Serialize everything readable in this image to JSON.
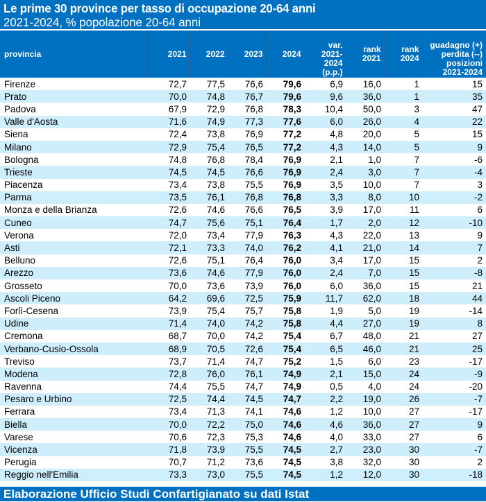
{
  "title": "Le prime 30 province per tasso di occupazione 20-64 anni",
  "subtitle": "2021-2024, % popolazione 20-64 anni",
  "columns": [
    {
      "key": "provincia",
      "label": "provincia"
    },
    {
      "key": "y2021",
      "label": "2021"
    },
    {
      "key": "y2022",
      "label": "2022"
    },
    {
      "key": "y2023",
      "label": "2023"
    },
    {
      "key": "y2024",
      "label": "2024"
    },
    {
      "key": "var",
      "label_lines": [
        "var.",
        "2021-",
        "2024",
        "(p.p.)"
      ]
    },
    {
      "key": "rank2021",
      "label_lines": [
        "rank",
        "2021"
      ]
    },
    {
      "key": "rank2024",
      "label_lines": [
        "rank",
        "2024"
      ]
    },
    {
      "key": "delta",
      "label_lines": [
        "guadagno (+)",
        "perdita (--)",
        "posizioni",
        "2021-2024"
      ]
    }
  ],
  "rows": [
    [
      "Firenze",
      "72,7",
      "77,5",
      "76,6",
      "79,6",
      "6,9",
      "16,0",
      "1",
      "15"
    ],
    [
      "Prato",
      "70,0",
      "74,8",
      "76,7",
      "79,6",
      "9,6",
      "36,0",
      "1",
      "35"
    ],
    [
      "Padova",
      "67,9",
      "72,9",
      "76,8",
      "78,3",
      "10,4",
      "50,0",
      "3",
      "47"
    ],
    [
      "Valle d'Aosta",
      "71,6",
      "74,9",
      "77,3",
      "77,6",
      "6,0",
      "26,0",
      "4",
      "22"
    ],
    [
      "Siena",
      "72,4",
      "73,8",
      "76,9",
      "77,2",
      "4,8",
      "20,0",
      "5",
      "15"
    ],
    [
      "Milano",
      "72,9",
      "75,4",
      "76,5",
      "77,2",
      "4,3",
      "14,0",
      "5",
      "9"
    ],
    [
      "Bologna",
      "74,8",
      "76,8",
      "78,4",
      "76,9",
      "2,1",
      "1,0",
      "7",
      "-6"
    ],
    [
      "Trieste",
      "74,5",
      "74,5",
      "76,6",
      "76,9",
      "2,4",
      "3,0",
      "7",
      "-4"
    ],
    [
      "Piacenza",
      "73,4",
      "73,8",
      "75,5",
      "76,9",
      "3,5",
      "10,0",
      "7",
      "3"
    ],
    [
      "Parma",
      "73,5",
      "76,1",
      "76,8",
      "76,8",
      "3,3",
      "8,0",
      "10",
      "-2"
    ],
    [
      "Monza e della Brianza",
      "72,6",
      "74,6",
      "76,6",
      "76,5",
      "3,9",
      "17,0",
      "11",
      "6"
    ],
    [
      "Cuneo",
      "74,7",
      "75,6",
      "75,1",
      "76,4",
      "1,7",
      "2,0",
      "12",
      "-10"
    ],
    [
      "Verona",
      "72,0",
      "73,4",
      "77,9",
      "76,3",
      "4,3",
      "22,0",
      "13",
      "9"
    ],
    [
      "Asti",
      "72,1",
      "73,3",
      "74,0",
      "76,2",
      "4,1",
      "21,0",
      "14",
      "7"
    ],
    [
      "Belluno",
      "72,6",
      "75,1",
      "76,4",
      "76,0",
      "3,4",
      "17,0",
      "15",
      "2"
    ],
    [
      "Arezzo",
      "73,6",
      "74,6",
      "77,9",
      "76,0",
      "2,4",
      "7,0",
      "15",
      "-8"
    ],
    [
      "Grosseto",
      "70,0",
      "73,6",
      "73,9",
      "76,0",
      "6,0",
      "36,0",
      "15",
      "21"
    ],
    [
      "Ascoli Piceno",
      "64,2",
      "69,6",
      "72,5",
      "75,9",
      "11,7",
      "62,0",
      "18",
      "44"
    ],
    [
      "Forlì-Cesena",
      "73,9",
      "75,4",
      "75,7",
      "75,8",
      "1,9",
      "5,0",
      "19",
      "-14"
    ],
    [
      "Udine",
      "71,4",
      "74,0",
      "74,2",
      "75,8",
      "4,4",
      "27,0",
      "19",
      "8"
    ],
    [
      "Cremona",
      "68,7",
      "70,0",
      "74,2",
      "75,4",
      "6,7",
      "48,0",
      "21",
      "27"
    ],
    [
      "Verbano-Cusio-Ossola",
      "68,9",
      "70,5",
      "72,6",
      "75,4",
      "6,5",
      "46,0",
      "21",
      "25"
    ],
    [
      "Treviso",
      "73,7",
      "71,4",
      "74,7",
      "75,2",
      "1,5",
      "6,0",
      "23",
      "-17"
    ],
    [
      "Modena",
      "72,8",
      "76,0",
      "76,1",
      "74,9",
      "2,1",
      "15,0",
      "24",
      "-9"
    ],
    [
      "Ravenna",
      "74,4",
      "75,5",
      "74,7",
      "74,9",
      "0,5",
      "4,0",
      "24",
      "-20"
    ],
    [
      "Pesaro e Urbino",
      "72,5",
      "74,4",
      "74,5",
      "74,7",
      "2,2",
      "19,0",
      "26",
      "-7"
    ],
    [
      "Ferrara",
      "73,4",
      "71,3",
      "74,1",
      "74,6",
      "1,2",
      "10,0",
      "27",
      "-17"
    ],
    [
      "Biella",
      "70,0",
      "72,2",
      "75,0",
      "74,6",
      "4,6",
      "36,0",
      "27",
      "9"
    ],
    [
      "Varese",
      "70,6",
      "72,3",
      "75,3",
      "74,6",
      "4,0",
      "33,0",
      "27",
      "6"
    ],
    [
      "Vicenza",
      "71,8",
      "73,9",
      "75,5",
      "74,5",
      "2,7",
      "23,0",
      "30",
      "-7"
    ],
    [
      "Perugia",
      "70,7",
      "71,2",
      "73,6",
      "74,5",
      "3,8",
      "32,0",
      "30",
      "2"
    ],
    [
      "Reggio nell'Emilia",
      "73,3",
      "73,0",
      "75,5",
      "74,5",
      "1,2",
      "12,0",
      "30",
      "-18"
    ]
  ],
  "footer": "Elaborazione Ufficio Studi Confartigianato su dati Istat",
  "colors": {
    "header_blue": "#0070c0",
    "stripe_light_blue": "#cdeefa",
    "text": "#000000"
  }
}
